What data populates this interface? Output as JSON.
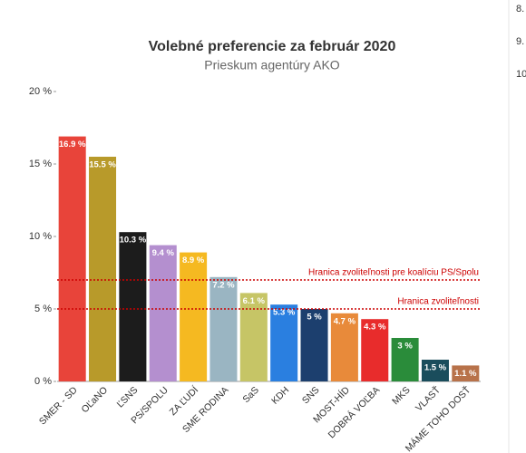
{
  "chart_data": {
    "type": "bar",
    "title": "Volebné preferencie za február 2020",
    "subtitle": "Prieskum agentúry AKO",
    "categories": [
      "SMER - SD",
      "OĽaNO",
      "ĽSNS",
      "PS/SPOLU",
      "ZA ĽUDÍ",
      "SME RODINA",
      "SaS",
      "KDH",
      "SNS",
      "MOST-HÍD",
      "DOBRÁ VOĽBA",
      "MKS",
      "VLASŤ",
      "MÁME TOHO DOSŤ"
    ],
    "values": [
      16.9,
      15.5,
      10.3,
      9.4,
      8.9,
      7.2,
      6.1,
      5.3,
      5,
      4.7,
      4.3,
      3,
      1.5,
      1.1
    ],
    "value_labels": [
      "16.9 %",
      "15.5 %",
      "10.3 %",
      "9.4 %",
      "8.9 %",
      "7.2 %",
      "6.1 %",
      "5.3 %",
      "5 %",
      "4.7 %",
      "4.3 %",
      "3 %",
      "1.5 %",
      "1.1 %"
    ],
    "colors": [
      "#e8443a",
      "#b89a2a",
      "#1c1c1c",
      "#b48fcf",
      "#f5b921",
      "#9ab5c2",
      "#c6c566",
      "#2a7fe0",
      "#1c3f6e",
      "#e88a3a",
      "#e82c2c",
      "#2a8c3a",
      "#1a4d5c",
      "#b8724a"
    ],
    "ylim": [
      0,
      20
    ],
    "yticks": [
      {
        "value": 0,
        "label": "0 %"
      },
      {
        "value": 5,
        "label": "5 %"
      },
      {
        "value": 10,
        "label": "10 %"
      },
      {
        "value": 15,
        "label": "15 %"
      },
      {
        "value": 20,
        "label": "20 %"
      }
    ],
    "reference_lines": [
      {
        "value": 7,
        "label": "Hranica zvoliteľnosti pre koalíciu PS/Spolu",
        "color": "#cc0000"
      },
      {
        "value": 5,
        "label": "Hranica zvoliteľnosti",
        "color": "#cc0000"
      }
    ]
  },
  "page_fragment": [
    "8.",
    "9.",
    "10"
  ]
}
